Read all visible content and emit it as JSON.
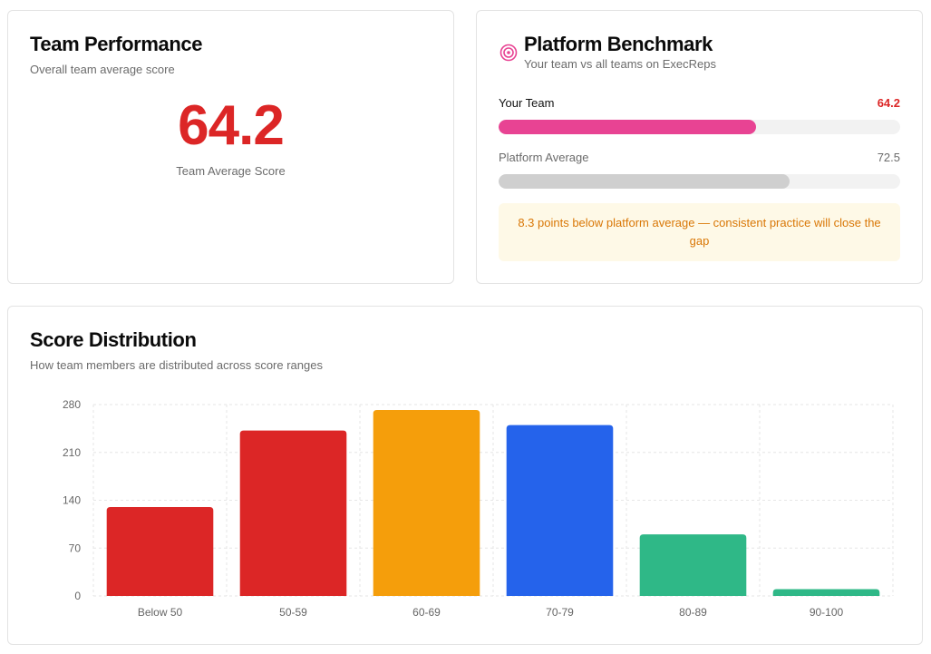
{
  "team_performance": {
    "title": "Team Performance",
    "subtitle": "Overall team average score",
    "score": "64.2",
    "score_label": "Team Average Score",
    "score_color": "#dc2626"
  },
  "platform_benchmark": {
    "title": "Platform Benchmark",
    "subtitle": "Your team vs all teams on ExecReps",
    "icon": "target-icon",
    "your_team": {
      "label": "Your Team",
      "value": "64.2",
      "percent": 64.2,
      "color": "#e84393"
    },
    "platform_average": {
      "label": "Platform Average",
      "value": "72.5",
      "percent": 72.5,
      "color": "#cfcfcf"
    },
    "note": "8.3 points below platform average — consistent practice will close the gap"
  },
  "score_distribution": {
    "title": "Score Distribution",
    "subtitle": "How team members are distributed across score ranges"
  },
  "chart_data": {
    "type": "bar",
    "categories": [
      "Below 50",
      "50-59",
      "60-69",
      "70-79",
      "80-89",
      "90-100"
    ],
    "values": [
      130,
      242,
      272,
      250,
      90,
      10
    ],
    "colors": [
      "#dc2626",
      "#dc2626",
      "#f59e0b",
      "#2563eb",
      "#2fb887",
      "#2fb887"
    ],
    "ylim": [
      0,
      280
    ],
    "yticks": [
      0,
      70,
      140,
      210,
      280
    ],
    "grid": true,
    "title": "",
    "xlabel": "",
    "ylabel": ""
  }
}
